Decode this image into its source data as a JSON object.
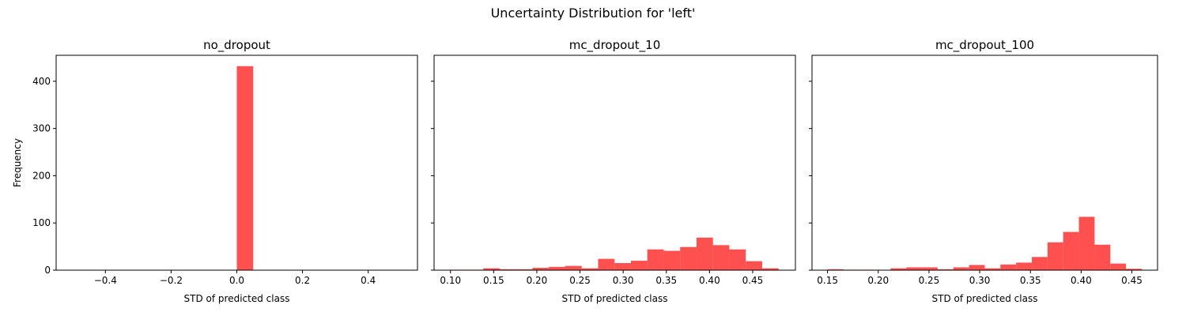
{
  "suptitle": "Uncertainty Distribution for 'left'",
  "chart_data": [
    {
      "type": "bar",
      "title": "no_dropout",
      "xlabel": "STD of predicted class",
      "ylabel": "Frequency",
      "xlim": [
        -0.55,
        0.55
      ],
      "ylim": [
        0,
        455
      ],
      "xticks": [
        -0.4,
        -0.2,
        0.0,
        0.2,
        0.4
      ],
      "xtick_labels": [
        "−0.4",
        "−0.2",
        "0.0",
        "0.2",
        "0.4"
      ],
      "yticks": [
        0,
        100,
        200,
        300,
        400
      ],
      "ytick_labels": [
        "0",
        "100",
        "200",
        "300",
        "400"
      ],
      "color": "#ff5050",
      "bins": [
        {
          "x0": 0.0,
          "x1": 0.05,
          "count": 432
        }
      ]
    },
    {
      "type": "bar",
      "title": "mc_dropout_10",
      "xlabel": "STD of predicted class",
      "ylabel": "",
      "xlim": [
        0.081,
        0.4995
      ],
      "ylim": [
        0,
        455
      ],
      "xticks": [
        0.1,
        0.15,
        0.2,
        0.25,
        0.3,
        0.35,
        0.4,
        0.45
      ],
      "xtick_labels": [
        "0.10",
        "0.15",
        "0.20",
        "0.25",
        "0.30",
        "0.35",
        "0.40",
        "0.45"
      ],
      "yticks": [
        0,
        100,
        200,
        300,
        400
      ],
      "ytick_labels": [],
      "color": "#ff5050",
      "bins": [
        {
          "x0": 0.1,
          "x1": 0.119,
          "count": 1
        },
        {
          "x0": 0.119,
          "x1": 0.138,
          "count": 1
        },
        {
          "x0": 0.138,
          "x1": 0.157,
          "count": 4
        },
        {
          "x0": 0.157,
          "x1": 0.176,
          "count": 2
        },
        {
          "x0": 0.176,
          "x1": 0.195,
          "count": 2
        },
        {
          "x0": 0.195,
          "x1": 0.214,
          "count": 5
        },
        {
          "x0": 0.214,
          "x1": 0.233,
          "count": 7
        },
        {
          "x0": 0.233,
          "x1": 0.252,
          "count": 9
        },
        {
          "x0": 0.252,
          "x1": 0.271,
          "count": 4
        },
        {
          "x0": 0.271,
          "x1": 0.29,
          "count": 24
        },
        {
          "x0": 0.29,
          "x1": 0.309,
          "count": 15
        },
        {
          "x0": 0.309,
          "x1": 0.328,
          "count": 20
        },
        {
          "x0": 0.328,
          "x1": 0.347,
          "count": 44
        },
        {
          "x0": 0.347,
          "x1": 0.366,
          "count": 41
        },
        {
          "x0": 0.366,
          "x1": 0.385,
          "count": 49
        },
        {
          "x0": 0.385,
          "x1": 0.404,
          "count": 69
        },
        {
          "x0": 0.404,
          "x1": 0.423,
          "count": 53
        },
        {
          "x0": 0.423,
          "x1": 0.442,
          "count": 44
        },
        {
          "x0": 0.442,
          "x1": 0.461,
          "count": 19
        },
        {
          "x0": 0.461,
          "x1": 0.48,
          "count": 4
        }
      ]
    },
    {
      "type": "bar",
      "title": "mc_dropout_100",
      "xlabel": "STD of predicted class",
      "ylabel": "",
      "xlim": [
        0.1347,
        0.4753
      ],
      "ylim": [
        0,
        455
      ],
      "xticks": [
        0.15,
        0.2,
        0.25,
        0.3,
        0.35,
        0.4,
        0.45
      ],
      "xtick_labels": [
        "0.15",
        "0.20",
        "0.25",
        "0.30",
        "0.35",
        "0.40",
        "0.45"
      ],
      "yticks": [
        0,
        100,
        200,
        300,
        400
      ],
      "ytick_labels": [],
      "color": "#ff5050",
      "bins": [
        {
          "x0": 0.1502,
          "x1": 0.1657,
          "count": 2
        },
        {
          "x0": 0.1657,
          "x1": 0.1812,
          "count": 1
        },
        {
          "x0": 0.1812,
          "x1": 0.1966,
          "count": 1
        },
        {
          "x0": 0.1966,
          "x1": 0.2121,
          "count": 0
        },
        {
          "x0": 0.2121,
          "x1": 0.2276,
          "count": 4
        },
        {
          "x0": 0.2276,
          "x1": 0.2431,
          "count": 6
        },
        {
          "x0": 0.2431,
          "x1": 0.2585,
          "count": 6
        },
        {
          "x0": 0.2585,
          "x1": 0.274,
          "count": 2
        },
        {
          "x0": 0.274,
          "x1": 0.2895,
          "count": 6
        },
        {
          "x0": 0.2895,
          "x1": 0.305,
          "count": 11
        },
        {
          "x0": 0.305,
          "x1": 0.3204,
          "count": 4
        },
        {
          "x0": 0.3204,
          "x1": 0.3359,
          "count": 12
        },
        {
          "x0": 0.3359,
          "x1": 0.3514,
          "count": 16
        },
        {
          "x0": 0.3514,
          "x1": 0.3669,
          "count": 28
        },
        {
          "x0": 0.3669,
          "x1": 0.3823,
          "count": 59
        },
        {
          "x0": 0.3823,
          "x1": 0.3978,
          "count": 81
        },
        {
          "x0": 0.3978,
          "x1": 0.4133,
          "count": 113
        },
        {
          "x0": 0.4133,
          "x1": 0.4288,
          "count": 54
        },
        {
          "x0": 0.4288,
          "x1": 0.4442,
          "count": 14
        },
        {
          "x0": 0.4442,
          "x1": 0.4597,
          "count": 3
        }
      ]
    }
  ]
}
